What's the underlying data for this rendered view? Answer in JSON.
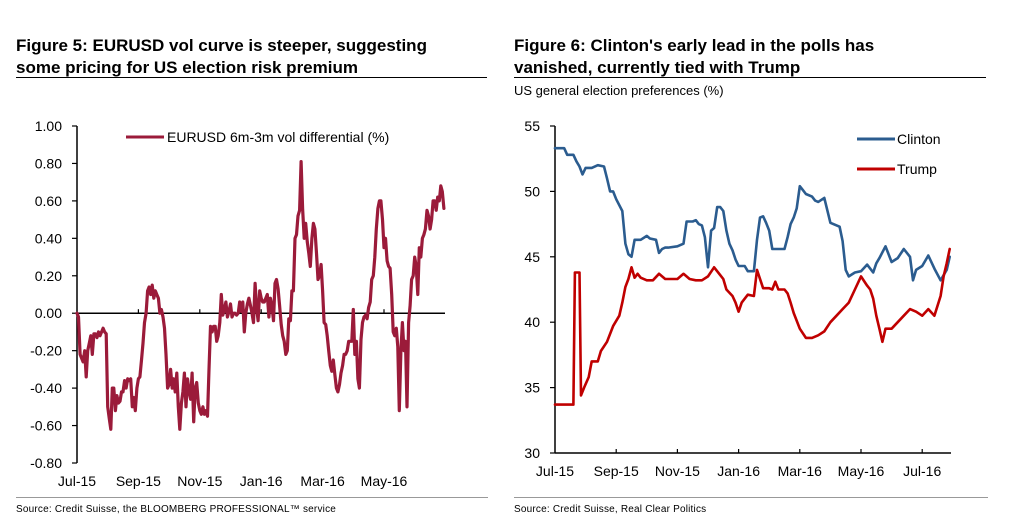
{
  "figures": [
    {
      "title_line1": "Figure 5: EURUSD vol curve is steeper, suggesting",
      "title_line2": "some pricing for US election risk premium",
      "subtitle": "",
      "source": "Source: Credit Suisse, the BLOOMBERG PROFESSIONAL™ service"
    },
    {
      "title_line1": "Figure 6: Clinton's early lead in the polls has",
      "title_line2": "vanished, currently tied with Trump",
      "subtitle": "US general election preferences (%)",
      "source": "Source: Credit Suisse, Real Clear Politics"
    }
  ],
  "chart_data": [
    {
      "type": "line",
      "title": "Figure 5: EURUSD vol curve is steeper, suggesting some pricing for US election risk premium",
      "xlabel": "",
      "ylabel": "",
      "ylim": [
        -0.8,
        1.0
      ],
      "yticks": [
        -0.8,
        -0.6,
        -0.4,
        -0.2,
        0.0,
        0.2,
        0.4,
        0.6,
        0.8,
        1.0
      ],
      "ytick_labels": [
        "-0.80",
        "-0.60",
        "-0.40",
        "-0.20",
        "0.00",
        "0.20",
        "0.40",
        "0.60",
        "0.80",
        "1.00"
      ],
      "xlim_months": [
        0,
        12
      ],
      "xticks_months": [
        0,
        2,
        4,
        6,
        8,
        10
      ],
      "xtick_labels": [
        "Jul-15",
        "Sep-15",
        "Nov-15",
        "Jan-16",
        "Mar-16",
        "May-16"
      ],
      "grid": false,
      "legend": "top-right",
      "colors": {
        "series": "#9b1b3a",
        "axis": "#000000"
      },
      "series": [
        {
          "name": "EURUSD 6m-3m vol differential (%)",
          "x_months": [
            0.0,
            0.05,
            0.1,
            0.15,
            0.2,
            0.25,
            0.3,
            0.35,
            0.4,
            0.45,
            0.5,
            0.55,
            0.6,
            0.65,
            0.7,
            0.75,
            0.8,
            0.85,
            0.9,
            0.95,
            1.0,
            1.05,
            1.1,
            1.15,
            1.2,
            1.25,
            1.3,
            1.35,
            1.4,
            1.45,
            1.5,
            1.55,
            1.6,
            1.65,
            1.7,
            1.75,
            1.8,
            1.85,
            1.9,
            1.95,
            2.0,
            2.05,
            2.1,
            2.15,
            2.2,
            2.25,
            2.3,
            2.35,
            2.4,
            2.45,
            2.5,
            2.55,
            2.6,
            2.65,
            2.7,
            2.75,
            2.8,
            2.85,
            2.9,
            2.95,
            3.0,
            3.05,
            3.1,
            3.15,
            3.2,
            3.25,
            3.3,
            3.35,
            3.4,
            3.45,
            3.5,
            3.55,
            3.6,
            3.65,
            3.7,
            3.75,
            3.8,
            3.85,
            3.9,
            3.95,
            4.0,
            4.05,
            4.1,
            4.15,
            4.2,
            4.25,
            4.3,
            4.35,
            4.4,
            4.45,
            4.5,
            4.55,
            4.6,
            4.65,
            4.7,
            4.75,
            4.8,
            4.85,
            4.9,
            4.95,
            5.0,
            5.05,
            5.1,
            5.15,
            5.2,
            5.25,
            5.3,
            5.35,
            5.4,
            5.45,
            5.5,
            5.55,
            5.6,
            5.65,
            5.7,
            5.75,
            5.8,
            5.85,
            5.9,
            5.95,
            6.0,
            6.05,
            6.1,
            6.15,
            6.2,
            6.25,
            6.3,
            6.35,
            6.4,
            6.45,
            6.5,
            6.55,
            6.6,
            6.65,
            6.7,
            6.75,
            6.8,
            6.85,
            6.9,
            6.95,
            7.0,
            7.05,
            7.1,
            7.15,
            7.2,
            7.25,
            7.3,
            7.35,
            7.4,
            7.45,
            7.5,
            7.55,
            7.6,
            7.65,
            7.7,
            7.75,
            7.8,
            7.85,
            7.9,
            7.95,
            8.0,
            8.05,
            8.1,
            8.15,
            8.2,
            8.25,
            8.3,
            8.35,
            8.4,
            8.45,
            8.5,
            8.55,
            8.6,
            8.65,
            8.7,
            8.75,
            8.8,
            8.85,
            8.9,
            8.95,
            9.0,
            9.05,
            9.1,
            9.15,
            9.2,
            9.25,
            9.3,
            9.35,
            9.4,
            9.45,
            9.5,
            9.55,
            9.6,
            9.65,
            9.7,
            9.75,
            9.8,
            9.85,
            9.9,
            9.95,
            10.0,
            10.05,
            10.1,
            10.15,
            10.2,
            10.25,
            10.3,
            10.35,
            10.4,
            10.45,
            10.5,
            10.55,
            10.6,
            10.65,
            10.7,
            10.75,
            10.8,
            10.85,
            10.9,
            10.95,
            11.0,
            11.05,
            11.1,
            11.15,
            11.2,
            11.25,
            11.3,
            11.35,
            11.4,
            11.45,
            11.5,
            11.55,
            11.6,
            11.65,
            11.7,
            11.75,
            11.8,
            11.85,
            11.9,
            11.95
          ],
          "y": [
            0.0,
            -0.02,
            -0.22,
            -0.24,
            -0.26,
            -0.2,
            -0.34,
            -0.2,
            -0.16,
            -0.12,
            -0.22,
            -0.11,
            -0.11,
            -0.13,
            -0.1,
            -0.12,
            -0.1,
            -0.08,
            -0.1,
            -0.11,
            -0.5,
            -0.56,
            -0.62,
            -0.4,
            -0.4,
            -0.52,
            -0.44,
            -0.48,
            -0.47,
            -0.42,
            -0.42,
            -0.36,
            -0.4,
            -0.35,
            -0.36,
            -0.35,
            -0.5,
            -0.45,
            -0.52,
            -0.4,
            -0.35,
            -0.34,
            -0.25,
            -0.16,
            -0.05,
            0.0,
            0.12,
            0.14,
            0.1,
            0.15,
            0.08,
            0.12,
            0.1,
            0.08,
            0.0,
            0.02,
            -0.02,
            -0.08,
            -0.22,
            -0.4,
            -0.38,
            -0.3,
            -0.4,
            -0.35,
            -0.42,
            -0.32,
            -0.5,
            -0.62,
            -0.48,
            -0.42,
            -0.32,
            -0.5,
            -0.35,
            -0.42,
            -0.46,
            -0.32,
            -0.58,
            -0.4,
            -0.37,
            -0.48,
            -0.52,
            -0.54,
            -0.5,
            -0.54,
            -0.52,
            -0.55,
            -0.3,
            -0.07,
            -0.1,
            -0.07,
            -0.07,
            -0.15,
            -0.12,
            -0.05,
            0.1,
            -0.01,
            0.02,
            0.06,
            -0.02,
            0.01,
            0.05,
            -0.02,
            0.0,
            0.0,
            -0.01,
            0.0,
            0.06,
            0.01,
            0.06,
            -0.1,
            0.0,
            0.05,
            0.08,
            0.04,
            0.0,
            -0.05,
            0.16,
            0.03,
            -0.04,
            0.12,
            0.08,
            0.06,
            0.06,
            0.08,
            0.1,
            -0.02,
            0.08,
            0.04,
            -0.04,
            0.16,
            0.18,
            0.13,
            0.04,
            -0.06,
            -0.12,
            -0.15,
            -0.22,
            -0.2,
            -0.03,
            -0.04,
            0.12,
            0.12,
            0.4,
            0.42,
            0.52,
            0.55,
            0.81,
            0.56,
            0.4,
            0.48,
            0.38,
            0.32,
            0.25,
            0.4,
            0.48,
            0.45,
            0.32,
            0.18,
            0.2,
            0.26,
            0.12,
            -0.05,
            -0.06,
            -0.12,
            -0.2,
            -0.28,
            -0.31,
            -0.25,
            -0.33,
            -0.4,
            -0.42,
            -0.38,
            -0.32,
            -0.28,
            -0.22,
            -0.22,
            -0.2,
            -0.15,
            -0.15,
            -0.15,
            0.02,
            -0.22,
            -0.15,
            -0.35,
            -0.4,
            -0.14,
            -0.05,
            -0.02,
            -0.01,
            -0.03,
            0.03,
            0.06,
            0.18,
            0.2,
            0.3,
            0.45,
            0.56,
            0.6,
            0.6,
            0.5,
            0.35,
            0.4,
            0.28,
            0.25,
            0.24,
            0.1,
            -0.1,
            -0.12,
            -0.08,
            -0.18,
            -0.52,
            -0.2,
            -0.05,
            -0.2,
            -0.15,
            -0.5,
            -0.05,
            0.04,
            0.18,
            0.2,
            0.3,
            0.25,
            0.1,
            0.35,
            0.3,
            0.4,
            0.42,
            0.45,
            0.55,
            0.52,
            0.45,
            0.5,
            0.6,
            0.6,
            0.55,
            0.62,
            0.6,
            0.68,
            0.65,
            0.56,
            0.58
          ]
        }
      ]
    },
    {
      "type": "line",
      "title": "Figure 6: Clinton's early lead in the polls has vanished, currently tied with Trump",
      "subtitle": "US general election preferences (%)",
      "xlabel": "",
      "ylabel": "",
      "ylim": [
        30,
        55
      ],
      "yticks": [
        30,
        35,
        40,
        45,
        50,
        55
      ],
      "ytick_labels": [
        "30",
        "35",
        "40",
        "45",
        "50",
        "55"
      ],
      "xlim_months": [
        0,
        13
      ],
      "xticks_months": [
        0,
        2,
        4,
        6,
        8,
        10,
        12
      ],
      "xtick_labels": [
        "Jul-15",
        "Sep-15",
        "Nov-15",
        "Jan-16",
        "Mar-16",
        "May-16",
        "Jul-16"
      ],
      "grid": false,
      "legend": "top-right",
      "colors": {
        "Clinton": "#2b5c8f",
        "Trump": "#c00000",
        "axis": "#000000"
      },
      "series": [
        {
          "name": "Clinton",
          "x_months": [
            0.0,
            0.3,
            0.4,
            0.6,
            0.7,
            0.8,
            0.9,
            1.0,
            1.1,
            1.2,
            1.4,
            1.6,
            1.7,
            1.8,
            1.9,
            2.0,
            2.2,
            2.3,
            2.4,
            2.5,
            2.6,
            2.7,
            2.8,
            3.0,
            3.1,
            3.3,
            3.4,
            3.5,
            3.6,
            3.7,
            4.0,
            4.2,
            4.3,
            4.5,
            4.6,
            4.7,
            4.8,
            4.9,
            5.0,
            5.1,
            5.2,
            5.3,
            5.4,
            5.5,
            5.6,
            5.7,
            5.8,
            5.9,
            6.0,
            6.2,
            6.3,
            6.5,
            6.6,
            6.7,
            6.8,
            6.9,
            7.0,
            7.1,
            7.3,
            7.5,
            7.6,
            7.7,
            7.8,
            7.9,
            8.0,
            8.1,
            8.2,
            8.4,
            8.5,
            8.6,
            8.8,
            9.0,
            9.3,
            9.4,
            9.5,
            9.6,
            9.8,
            10.0,
            10.2,
            10.4,
            10.5,
            10.6,
            10.8,
            11.0,
            11.2,
            11.4,
            11.6,
            11.7,
            11.8,
            12.0,
            12.2,
            12.4,
            12.6,
            12.8,
            12.9
          ],
          "y": [
            53.3,
            53.3,
            52.8,
            52.8,
            52.3,
            51.9,
            51.3,
            51.8,
            51.8,
            51.8,
            52.0,
            51.9,
            51.0,
            50.0,
            50.0,
            49.4,
            48.5,
            46.0,
            45.2,
            45.0,
            46.3,
            46.3,
            46.3,
            46.6,
            46.4,
            46.3,
            45.3,
            45.6,
            45.7,
            45.7,
            45.8,
            46.0,
            47.7,
            47.7,
            47.8,
            47.5,
            47.4,
            46.5,
            44.2,
            47.0,
            47.2,
            48.8,
            48.8,
            48.5,
            47.0,
            46.0,
            45.5,
            44.8,
            44.3,
            44.3,
            43.9,
            43.9,
            46.3,
            48.0,
            48.1,
            47.6,
            47.0,
            45.6,
            45.6,
            45.6,
            46.5,
            47.5,
            48.0,
            48.7,
            50.4,
            50.1,
            49.8,
            49.6,
            49.3,
            49.2,
            49.5,
            47.6,
            47.3,
            46.2,
            44.0,
            43.5,
            43.8,
            43.9,
            44.4,
            43.8,
            44.5,
            44.9,
            45.8,
            44.6,
            44.9,
            45.6,
            45.0,
            43.2,
            44.0,
            44.3,
            45.1,
            44.1,
            43.2,
            44.0,
            45.0
          ]
        },
        {
          "name": "Trump",
          "x_months": [
            0.0,
            0.3,
            0.6,
            0.65,
            0.8,
            0.85,
            0.95,
            1.1,
            1.2,
            1.4,
            1.5,
            1.7,
            1.9,
            2.1,
            2.2,
            2.3,
            2.4,
            2.5,
            2.6,
            2.7,
            2.8,
            3.0,
            3.2,
            3.4,
            3.6,
            3.8,
            4.0,
            4.2,
            4.4,
            4.6,
            4.8,
            5.0,
            5.2,
            5.4,
            5.5,
            5.6,
            5.8,
            5.9,
            6.0,
            6.1,
            6.2,
            6.3,
            6.5,
            6.6,
            6.8,
            7.0,
            7.1,
            7.2,
            7.3,
            7.5,
            7.6,
            7.7,
            7.8,
            8.0,
            8.2,
            8.4,
            8.6,
            8.8,
            9.0,
            9.2,
            9.4,
            9.6,
            9.8,
            10.0,
            10.2,
            10.3,
            10.4,
            10.5,
            10.6,
            10.7,
            10.8,
            11.0,
            11.2,
            11.4,
            11.6,
            11.8,
            12.0,
            12.2,
            12.4,
            12.6,
            12.7,
            12.8,
            12.9
          ],
          "y": [
            33.7,
            33.7,
            33.7,
            43.8,
            43.8,
            34.4,
            35.0,
            35.8,
            37.0,
            37.0,
            37.8,
            38.5,
            39.7,
            40.5,
            41.5,
            42.7,
            43.3,
            44.2,
            43.4,
            43.7,
            43.4,
            43.2,
            43.2,
            43.7,
            43.3,
            43.3,
            43.3,
            43.7,
            43.3,
            43.2,
            43.2,
            43.5,
            44.2,
            43.6,
            43.3,
            42.5,
            42.0,
            41.5,
            40.8,
            41.5,
            41.8,
            42.1,
            42.0,
            44.0,
            42.6,
            42.6,
            42.5,
            43.1,
            42.5,
            42.5,
            42.2,
            41.5,
            40.7,
            39.5,
            38.8,
            38.8,
            39.0,
            39.3,
            40.0,
            40.5,
            41.0,
            41.5,
            42.5,
            43.5,
            42.8,
            42.5,
            41.8,
            40.5,
            39.5,
            38.5,
            39.5,
            39.5,
            40.0,
            40.5,
            41.0,
            40.8,
            40.5,
            41.0,
            40.5,
            42.0,
            43.5,
            44.5,
            45.6
          ]
        }
      ]
    }
  ]
}
